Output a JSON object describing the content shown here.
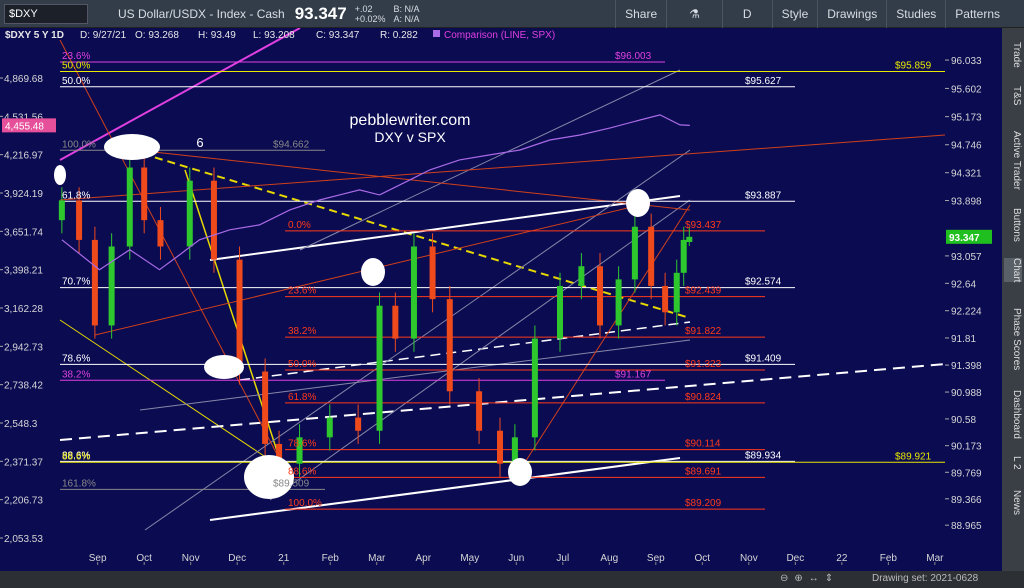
{
  "toolbar": {
    "symbol": "$DXY",
    "description": "US Dollar/USDX - Index - Cash",
    "price": "93.347",
    "change": "+.02",
    "change_pct": "+0.02%",
    "bid": "B: N/A",
    "ask": "A: N/A",
    "buttons": [
      "Share",
      "D",
      "Style",
      "Drawings",
      "Studies",
      "Patterns"
    ]
  },
  "info": {
    "symbol": "$DXY 5 Y 1D",
    "items": [
      "D: 9/27/21",
      "O: 93.268",
      "H: 93.49",
      "L: 93.208",
      "C: 93.347",
      "R: 0.282"
    ]
  },
  "side_tabs": [
    "Trade",
    "T&S",
    "Active Trader",
    "Buttons",
    "Chart",
    "Phase Scores",
    "Dashboard",
    "L 2",
    "News"
  ],
  "status": "Drawing set: 2021-0628",
  "chart_data": {
    "type": "candlestick",
    "candles": {
      "x": [
        -0.77,
        -0.4,
        -0.06,
        0.3,
        0.69,
        1.0,
        1.35,
        1.98,
        2.5,
        3.05,
        3.6,
        3.9,
        4.34,
        4.99,
        5.6,
        6.06,
        6.4,
        6.8,
        7.2,
        7.57,
        8.2,
        8.65,
        8.97,
        9.4,
        9.94,
        10.4,
        10.8,
        11.2,
        11.55,
        11.9,
        12.2,
        12.45,
        12.6,
        12.72
      ],
      "open": [
        93.6,
        93.9,
        93.3,
        92.0,
        93.2,
        94.4,
        93.6,
        93.2,
        94.2,
        93.0,
        91.3,
        90.2,
        89.9,
        90.3,
        90.6,
        90.4,
        92.3,
        91.8,
        93.2,
        92.4,
        91.0,
        90.4,
        89.9,
        90.3,
        91.8,
        92.6,
        92.9,
        92.0,
        92.7,
        93.5,
        92.6,
        92.2,
        92.8,
        93.268
      ],
      "high": [
        94.1,
        94.1,
        93.5,
        93.4,
        94.6,
        94.6,
        93.8,
        94.4,
        94.4,
        93.2,
        91.5,
        90.4,
        90.5,
        90.8,
        90.8,
        92.5,
        92.5,
        93.4,
        93.4,
        92.6,
        91.2,
        90.6,
        90.5,
        92.0,
        92.8,
        93.1,
        93.1,
        92.9,
        93.7,
        93.7,
        92.8,
        93.0,
        93.5,
        93.49
      ],
      "low": [
        93.4,
        93.1,
        91.8,
        91.8,
        93.0,
        93.4,
        93.0,
        93.0,
        92.8,
        91.1,
        90.0,
        89.7,
        89.7,
        90.1,
        90.2,
        90.2,
        91.6,
        91.6,
        92.2,
        90.8,
        90.2,
        89.7,
        89.7,
        90.1,
        91.6,
        92.4,
        91.8,
        91.8,
        92.5,
        92.4,
        92.0,
        92.0,
        92.6,
        93.208
      ],
      "close": [
        93.9,
        93.3,
        92.0,
        93.2,
        94.4,
        93.6,
        93.2,
        94.2,
        93.0,
        91.3,
        90.2,
        89.9,
        90.3,
        90.6,
        90.4,
        92.3,
        91.8,
        93.2,
        92.4,
        91.0,
        90.4,
        89.9,
        90.3,
        91.8,
        92.6,
        92.9,
        92.0,
        92.7,
        93.5,
        92.6,
        92.2,
        92.8,
        93.3,
        93.347
      ]
    },
    "up_color": "#2ec82e",
    "down_color": "#ee4a1c",
    "series": [
      {
        "name": "Comparison (LINE, SPX)",
        "color": "#a96be6",
        "axis": "y2",
        "x": [
          -0.77,
          0.04,
          0.69,
          1.33,
          1.76,
          2.19,
          2.84,
          3.48,
          4.13,
          4.77,
          5.2,
          5.63,
          6.06,
          6.71,
          7.14,
          7.78,
          8.43,
          9.08,
          9.72,
          10.37,
          11.02,
          11.66,
          12.09,
          12.52,
          12.73
        ],
        "values": [
          3594,
          3398,
          3528,
          3398,
          3494,
          3594,
          3662,
          3696,
          3802,
          3873,
          3910,
          3947,
          3910,
          4022,
          4098,
          4176,
          4215,
          4254,
          4335,
          4376,
          4434,
          4501,
          4544,
          4459,
          4455.48
        ]
      }
    ],
    "last_price": 93.347,
    "y2_last": {
      "value": 4455.48,
      "label": "4,455.48"
    },
    "xlim": [
      -2.1,
      19.4
    ],
    "xticks": [
      {
        "value": 0,
        "label": "Sep"
      },
      {
        "value": 1,
        "label": "Oct"
      },
      {
        "value": 2,
        "label": "Nov"
      },
      {
        "value": 3,
        "label": "Dec"
      },
      {
        "value": 4,
        "label": "21"
      },
      {
        "value": 5,
        "label": "Feb"
      },
      {
        "value": 6,
        "label": "Mar"
      },
      {
        "value": 7,
        "label": "Apr"
      },
      {
        "value": 8,
        "label": "May"
      },
      {
        "value": 9,
        "label": "Jun"
      },
      {
        "value": 10,
        "label": "Jul"
      },
      {
        "value": 11,
        "label": "Aug"
      },
      {
        "value": 12,
        "label": "Sep"
      },
      {
        "value": 13,
        "label": "Oct"
      },
      {
        "value": 14,
        "label": "Nov"
      },
      {
        "value": 15,
        "label": "Dec"
      },
      {
        "value": 16,
        "label": "22"
      },
      {
        "value": 17,
        "label": "Feb"
      },
      {
        "value": 18,
        "label": "Mar"
      }
    ],
    "ylim": [
      88.36,
      96.52
    ],
    "yticks": [
      96.033,
      95.602,
      95.173,
      94.746,
      94.321,
      93.898,
      93.057,
      92.64,
      92.224,
      91.81,
      91.398,
      90.988,
      90.58,
      90.173,
      89.769,
      89.366,
      88.965
    ],
    "y2lim": [
      1952,
      5349
    ],
    "y2_log": true,
    "y2ticks": [
      {
        "value": 4869.68,
        "label": "4,869.68"
      },
      {
        "value": 4531.56,
        "label": "4,531.56"
      },
      {
        "value": 4216.97,
        "label": "4,216.97"
      },
      {
        "value": 3924.19,
        "label": "3,924.19"
      },
      {
        "value": 3651.74,
        "label": "3,651.74"
      },
      {
        "value": 3398.21,
        "label": "3,398.21"
      },
      {
        "value": 3162.28,
        "label": "3,162.28"
      },
      {
        "value": 2942.73,
        "label": "2,942.73"
      },
      {
        "value": 2738.42,
        "label": "2,738.42"
      },
      {
        "value": 2548.3,
        "label": "2,548.3"
      },
      {
        "value": 2371.37,
        "label": "2,371.37"
      },
      {
        "value": 2206.73,
        "label": "2,206.73"
      },
      {
        "value": 2053.53,
        "label": "2,053.53"
      }
    ],
    "levels": [
      {
        "value": 96.003,
        "label": "$96.003",
        "color": "#e040e0",
        "fib": "23.6%"
      },
      {
        "value": 95.859,
        "label": "$95.859",
        "color": "#e8e800",
        "fib": "50.0%"
      },
      {
        "value": 95.627,
        "label": "$95.627",
        "color": "#ffffff",
        "fib": "50.0%"
      },
      {
        "value": 94.662,
        "label": "$94.662",
        "color": "#888888",
        "fib": "100.0%"
      },
      {
        "value": 93.887,
        "label": "$93.887",
        "color": "#ffffff",
        "fib": "61.8%"
      },
      {
        "value": 93.437,
        "label": "$93.437",
        "color": "#ff3a1a",
        "fib": "0.0%"
      },
      {
        "value": 92.574,
        "label": "$92.574",
        "color": "#ffffff",
        "fib": "70.7%"
      },
      {
        "value": 92.439,
        "label": "$92.439",
        "color": "#ff3a1a",
        "fib": "23.6%"
      },
      {
        "value": 91.822,
        "label": "$91.822",
        "color": "#ff3a1a",
        "fib": "38.2%"
      },
      {
        "value": 91.409,
        "label": "$91.409",
        "color": "#ffffff",
        "fib": "78.6%"
      },
      {
        "value": 91.323,
        "label": "$91.323",
        "color": "#ff3a1a",
        "fib": "50.0%"
      },
      {
        "value": 91.167,
        "label": "$91.167",
        "color": "#e040e0",
        "fib": "38.2%"
      },
      {
        "value": 90.824,
        "label": "$90.824",
        "color": "#ff3a1a",
        "fib": "61.8%"
      },
      {
        "value": 90.114,
        "label": "$90.114",
        "color": "#ff3a1a",
        "fib": "78.6%"
      },
      {
        "value": 89.934,
        "label": "$89.934",
        "color": "#ffffff",
        "fib": "88.6%"
      },
      {
        "value": 89.921,
        "label": "$89.921",
        "color": "#e8e800",
        "fib": "88.6%"
      },
      {
        "value": 89.691,
        "label": "$89.691",
        "color": "#ff3a1a",
        "fib": "88.6%"
      },
      {
        "value": 89.509,
        "label": "$89.509",
        "color": "#888888",
        "fib": "161.8%"
      },
      {
        "value": 89.209,
        "label": "$89.209",
        "color": "#ff3a1a",
        "fib": "100.0%"
      }
    ],
    "annotations": [
      "pebblewriter.com",
      "DXY v SPX",
      "6"
    ]
  }
}
